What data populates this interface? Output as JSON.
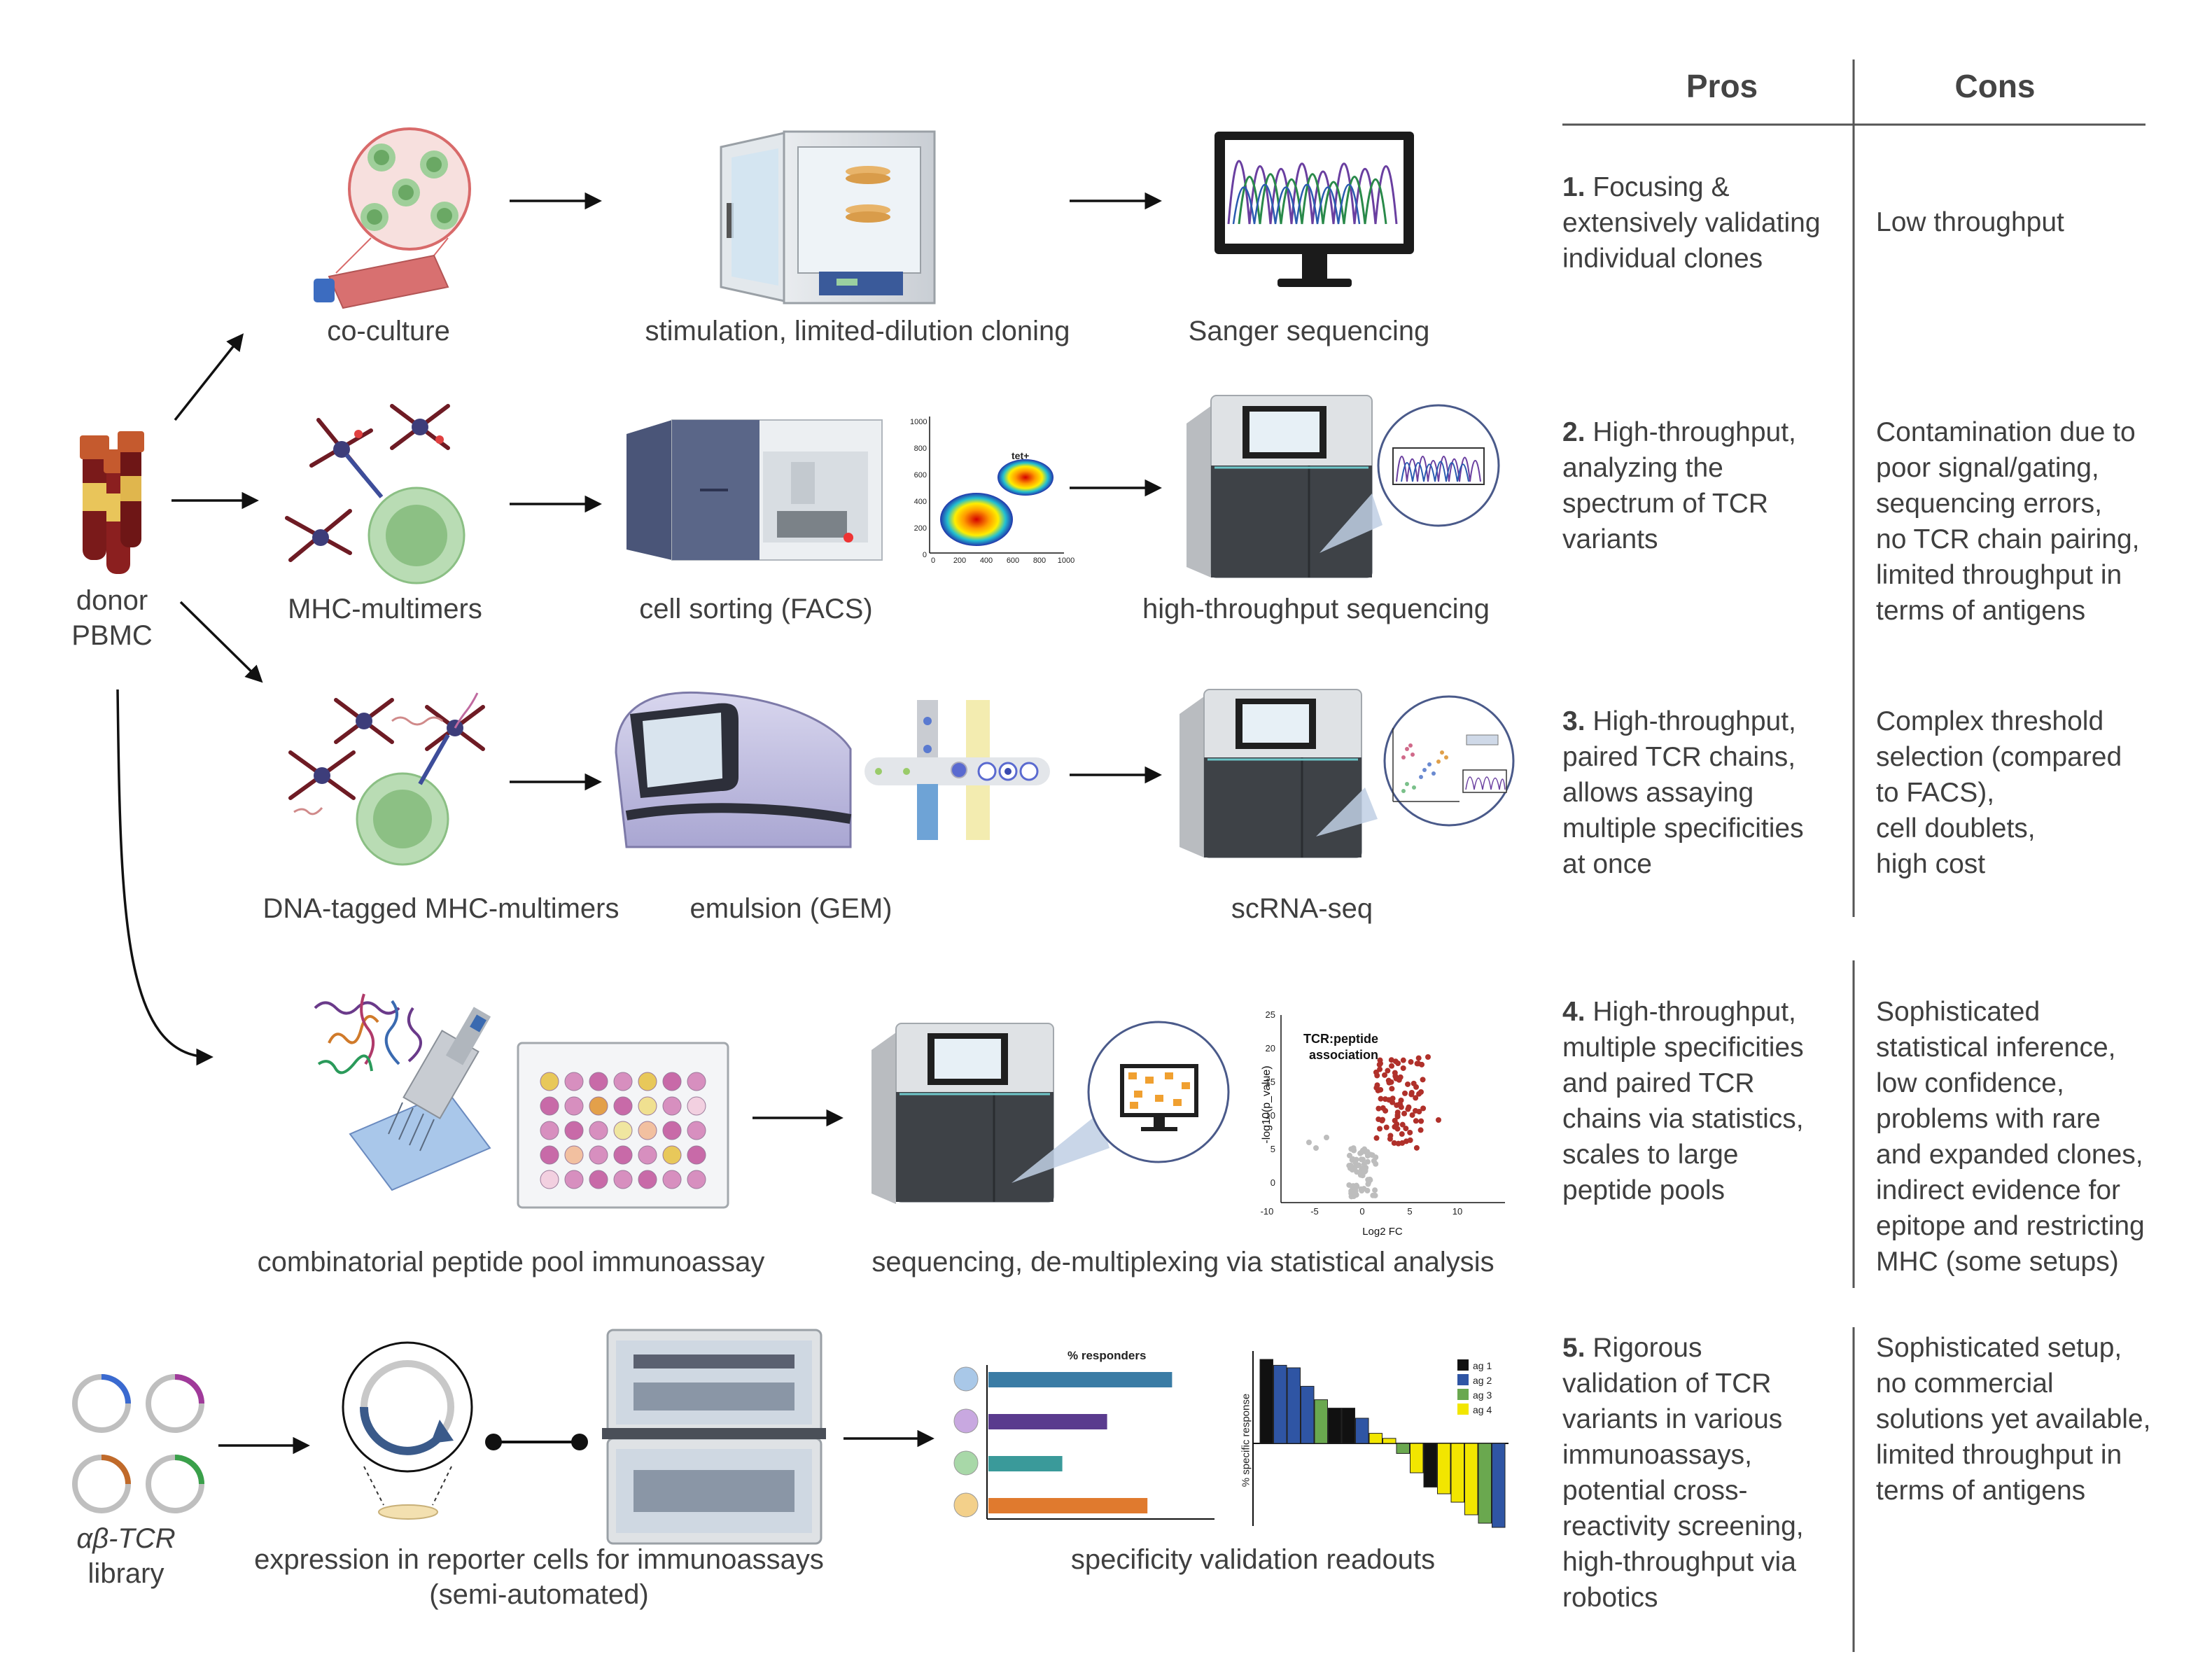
{
  "table": {
    "headers": {
      "pros": "Pros",
      "cons": "Cons"
    },
    "rows": [
      {
        "num": "1.",
        "pros_lines": [
          " Focusing &",
          "extensively validating",
          "individual clones"
        ],
        "cons_lines": [
          "Low throughput"
        ]
      },
      {
        "num": "2.",
        "pros_lines": [
          " High-throughput,",
          "analyzing the",
          "spectrum of TCR",
          "variants"
        ],
        "cons_lines": [
          "Contamination due to",
          "poor signal/gating,",
          "sequencing errors,",
          "no TCR chain pairing,",
          "limited throughput in",
          "terms of antigens"
        ]
      },
      {
        "num": "3.",
        "pros_lines": [
          " High-throughput,",
          "paired TCR chains,",
          "allows assaying",
          "multiple specificities",
          "at once"
        ],
        "cons_lines": [
          "Complex threshold",
          "selection (compared",
          "to FACS),",
          "cell doublets,",
          "high cost"
        ]
      },
      {
        "num": "4.",
        "pros_lines": [
          " High-throughput,",
          "multiple specificities",
          "and paired TCR",
          "chains via statistics,",
          "scales to large",
          "peptide pools"
        ],
        "cons_lines": [
          "Sophisticated",
          "statistical inference,",
          "low confidence,",
          "problems with rare",
          "and expanded clones,",
          "indirect evidence for",
          "epitope and restricting",
          "MHC (some setups)"
        ]
      },
      {
        "num": "5.",
        "pros_lines": [
          " Rigorous",
          "validation of TCR",
          "variants in various",
          "immunoassays,",
          "potential cross-",
          "reactivity screening,",
          "high-throughput via",
          "robotics"
        ],
        "cons_lines": [
          "Sophisticated setup,",
          "no commercial",
          "solutions yet available,",
          "limited throughput in",
          "terms of antigens"
        ]
      }
    ]
  },
  "labels": {
    "donor": "donor",
    "pbmc": "PBMC",
    "coculture": "co-culture",
    "stimulation": "stimulation, limited-dilution cloning",
    "sanger": "Sanger sequencing",
    "mhc": "MHC-multimers",
    "facs": "cell sorting (FACS)",
    "hts": "high-throughput sequencing",
    "dna_mhc": "DNA-tagged MHC-multimers",
    "gem": "emulsion (GEM)",
    "scrna": "scRNA-seq",
    "combi": "combinatorial peptide pool immunoassay",
    "seqdemux": "sequencing, de-multiplexing via statistical analysis",
    "library_line1": "αβ-TCR",
    "library_line2": "library",
    "expression_line1": "expression in reporter cells for immunoassays",
    "expression_line2": "(semi-automated)",
    "readouts": "specificity validation readouts"
  },
  "facs_plot": {
    "yticks": [
      "1000",
      "800",
      "600",
      "400",
      "200",
      "0"
    ],
    "xticks": [
      "0",
      "200",
      "400",
      "600",
      "800",
      "1000"
    ],
    "gate_label": "tet+"
  },
  "volcano": {
    "title_line1": "TCR:peptide",
    "title_line2": "association",
    "ylabel": "-log10(p_value)",
    "xlabel": "Log2 FC",
    "yticks": [
      "25",
      "20",
      "15",
      "10",
      "5",
      "0"
    ],
    "xticks": [
      "-10",
      "-5",
      "0",
      "5",
      "10"
    ]
  },
  "chart_data": [
    {
      "type": "bar",
      "title": "% responders",
      "orientation": "horizontal",
      "categories": [
        "1",
        "2",
        "3",
        "4"
      ],
      "values": [
        0.82,
        0.53,
        0.33,
        0.71
      ],
      "colors": [
        "#3a7ca5",
        "#5a3b8e",
        "#3a9a9a",
        "#e07a2e"
      ]
    },
    {
      "type": "bar",
      "ylabel": "% specific response",
      "legend": [
        "ag 1",
        "ag 2",
        "ag 3",
        "ag 4"
      ],
      "legend_colors": {
        "ag 1": "#111111",
        "ag 2": "#2f55a4",
        "ag 3": "#6aa84f",
        "ag 4": "#f2e600"
      },
      "values": [
        1.0,
        0.93,
        0.9,
        0.68,
        0.52,
        0.42,
        0.42,
        0.3,
        0.12,
        0.06,
        -0.12,
        -0.35,
        -0.52,
        -0.6,
        -0.7,
        -0.85,
        -0.95,
        -1.0
      ],
      "series_colors": [
        "ag 1",
        "ag 2",
        "ag 2",
        "ag 2",
        "ag 3",
        "ag 1",
        "ag 1",
        "ag 2",
        "ag 4",
        "ag 4",
        "ag 3",
        "ag 4",
        "ag 1",
        "ag 4",
        "ag 4",
        "ag 4",
        "ag 3",
        "ag 2"
      ]
    }
  ]
}
